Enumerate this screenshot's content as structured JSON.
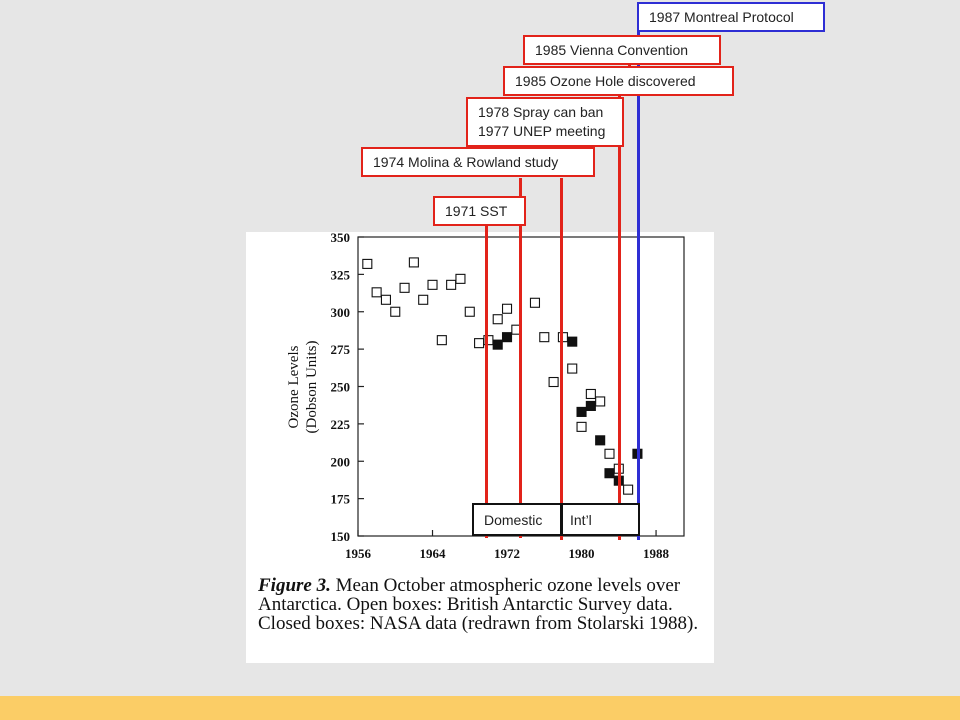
{
  "timeline": {
    "events": [
      {
        "year": 1971,
        "label": "1971 SST",
        "color": "#e2231a"
      },
      {
        "year": 1974,
        "label": "1974 Molina & Rowland study",
        "color": "#e2231a"
      },
      {
        "year": 1978,
        "label_lines": [
          "1978 Spray can ban",
          "1977 UNEP meeting"
        ],
        "color": "#e2231a"
      },
      {
        "year": 1985,
        "label": "1985 Ozone Hole discovered",
        "color": "#e2231a"
      },
      {
        "year": 1985,
        "label": "1985 Vienna Convention",
        "color": "#e2231a"
      },
      {
        "year": 1987,
        "label": "1987 Montreal Protocol",
        "color": "#2e2ed4"
      }
    ],
    "categories": {
      "domestic": "Domestic",
      "international": "Int’l"
    }
  },
  "figure": {
    "caption": {
      "figure_number": "Figure 3.",
      "text": "Mean October atmospheric ozone levels over Antarctica. Open boxes: British Antarctic Survey data. Closed boxes: NASA data (redrawn from Stolarski 1988)."
    }
  },
  "chart_data": {
    "type": "scatter",
    "ylabel": "Ozone Levels",
    "ylabel_units": "(Dobson Units)",
    "xlabel": "",
    "xticks": [
      1956,
      1964,
      1972,
      1980,
      1988
    ],
    "yticks": [
      150,
      175,
      200,
      225,
      250,
      275,
      300,
      325,
      350
    ],
    "xlim": [
      1956,
      1991
    ],
    "ylim": [
      150,
      350
    ],
    "grid": false,
    "series": [
      {
        "name": "British Antarctic Survey data",
        "marker": "open-square",
        "points": [
          [
            1957,
            332
          ],
          [
            1958,
            313
          ],
          [
            1959,
            308
          ],
          [
            1960,
            300
          ],
          [
            1961,
            316
          ],
          [
            1962,
            333
          ],
          [
            1963,
            308
          ],
          [
            1964,
            318
          ],
          [
            1965,
            281
          ],
          [
            1966,
            318
          ],
          [
            1967,
            322
          ],
          [
            1968,
            300
          ],
          [
            1969,
            279
          ],
          [
            1970,
            281
          ],
          [
            1971,
            295
          ],
          [
            1972,
            302
          ],
          [
            1973,
            288
          ],
          [
            1975,
            306
          ],
          [
            1976,
            283
          ],
          [
            1977,
            253
          ],
          [
            1978,
            283
          ],
          [
            1979,
            262
          ],
          [
            1980,
            223
          ],
          [
            1981,
            245
          ],
          [
            1982,
            240
          ],
          [
            1983,
            205
          ],
          [
            1984,
            195
          ],
          [
            1985,
            181
          ]
        ]
      },
      {
        "name": "NASA data",
        "marker": "filled-square",
        "points": [
          [
            1971,
            278
          ],
          [
            1972,
            283
          ],
          [
            1979,
            280
          ],
          [
            1980,
            233
          ],
          [
            1981,
            237
          ],
          [
            1982,
            214
          ],
          [
            1983,
            192
          ],
          [
            1984,
            187
          ],
          [
            1986,
            205
          ]
        ]
      }
    ]
  }
}
